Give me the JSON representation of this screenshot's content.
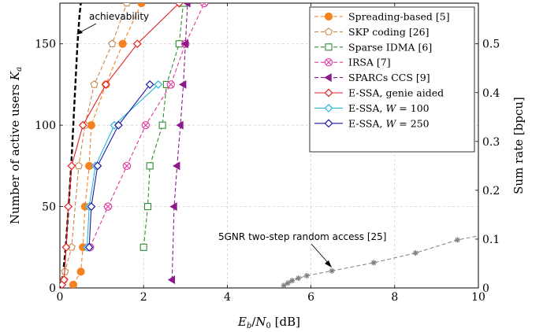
{
  "chart_data": {
    "type": "line",
    "xlabel": "E_b/N_0 [dB]",
    "ylabel": "Number of active users K_a",
    "y2label": "Sum rate [bpcu]",
    "xlim": [
      0,
      10
    ],
    "ylim": [
      0,
      175
    ],
    "y2lim": [
      0,
      0.5833
    ],
    "grid": true,
    "legend_position": "top-right",
    "x_ticks": [
      "0",
      "2",
      "4",
      "6",
      "8",
      "10"
    ],
    "y_ticks": [
      "0",
      "50",
      "100",
      "150"
    ],
    "y2_ticks": [
      "0",
      "0.1",
      "0.2",
      "0.3",
      "0.4",
      "0.5"
    ],
    "annotations": {
      "achievability": "achievability",
      "fivegnr": "5GNR two-step random access [25]"
    },
    "series": [
      {
        "name": "Spreading-based [5]",
        "color": "#f58220",
        "dash": "5,3",
        "marker": "circle-filled",
        "x": [
          0.32,
          0.5,
          0.55,
          0.6,
          0.7,
          0.75,
          1.1,
          1.5,
          1.95
        ],
        "y": [
          2,
          10,
          25,
          50,
          75,
          100,
          125,
          150,
          175
        ]
      },
      {
        "name": "SKP coding [26]",
        "color": "#c8874a",
        "dash": "5,3",
        "marker": "pentagon-open",
        "x": [
          0.1,
          0.12,
          0.28,
          0.45,
          0.6,
          0.82,
          1.25,
          1.6
        ],
        "y": [
          5,
          10,
          25,
          75,
          100,
          125,
          150,
          175
        ]
      },
      {
        "name": "Sparse IDMA [6]",
        "color": "#2e8b2e",
        "dash": "5,3",
        "marker": "square-open",
        "x": [
          2.0,
          2.1,
          2.15,
          2.45,
          2.55,
          2.85,
          2.95
        ],
        "y": [
          25,
          50,
          75,
          100,
          125,
          150,
          175
        ]
      },
      {
        "name": "IRSA [7]",
        "color": "#e0389e",
        "dash": "5,3",
        "marker": "circle-x",
        "x": [
          0.72,
          1.15,
          1.6,
          2.05,
          2.65,
          3.0,
          3.45
        ],
        "y": [
          25,
          50,
          75,
          100,
          125,
          150,
          175
        ]
      },
      {
        "name": "SPARCs CCS [9]",
        "color": "#8b1a8b",
        "dash": "5,3",
        "marker": "triangle-left",
        "x": [
          2.68,
          2.73,
          2.8,
          2.88,
          2.95,
          3.0,
          3.05
        ],
        "y": [
          5,
          50,
          75,
          100,
          125,
          150,
          175
        ]
      },
      {
        "name": "E-SSA, genie aided",
        "color": "#e32020",
        "dash": "",
        "marker": "diamond-open",
        "x": [
          0.05,
          0.1,
          0.15,
          0.2,
          0.28,
          0.55,
          1.1,
          1.85,
          2.85
        ],
        "y": [
          2,
          5,
          25,
          50,
          75,
          100,
          125,
          150,
          175
        ]
      },
      {
        "name": "E-SSA, W = 100",
        "color": "#29b6d6",
        "dash": "",
        "marker": "diamond-open",
        "x": [
          0.65,
          0.7,
          0.85,
          1.3,
          2.35
        ],
        "y": [
          25,
          50,
          75,
          100,
          125
        ]
      },
      {
        "name": "E-SSA, W = 250",
        "color": "#1a1aa8",
        "dash": "",
        "marker": "diamond-open",
        "x": [
          0.7,
          0.75,
          0.9,
          1.4,
          2.15
        ],
        "y": [
          25,
          50,
          75,
          100,
          125
        ]
      }
    ],
    "achievability_curve": {
      "color": "#000000",
      "x": [
        0.02,
        0.04,
        0.07,
        0.1,
        0.14,
        0.18,
        0.22,
        0.27,
        0.32,
        0.37,
        0.42,
        0.47,
        0.5
      ],
      "y": [
        0,
        3,
        8,
        15,
        25,
        40,
        55,
        75,
        100,
        125,
        150,
        168,
        175
      ]
    },
    "fivegnr": {
      "color": "#808080",
      "x": [
        5.35,
        5.45,
        5.55,
        5.7,
        5.9,
        6.5,
        7.5,
        8.5,
        9.5,
        10.0
      ],
      "y": [
        1.5,
        3,
        4.5,
        6,
        7.5,
        10.5,
        15.5,
        21.5,
        29.5,
        32
      ]
    }
  }
}
